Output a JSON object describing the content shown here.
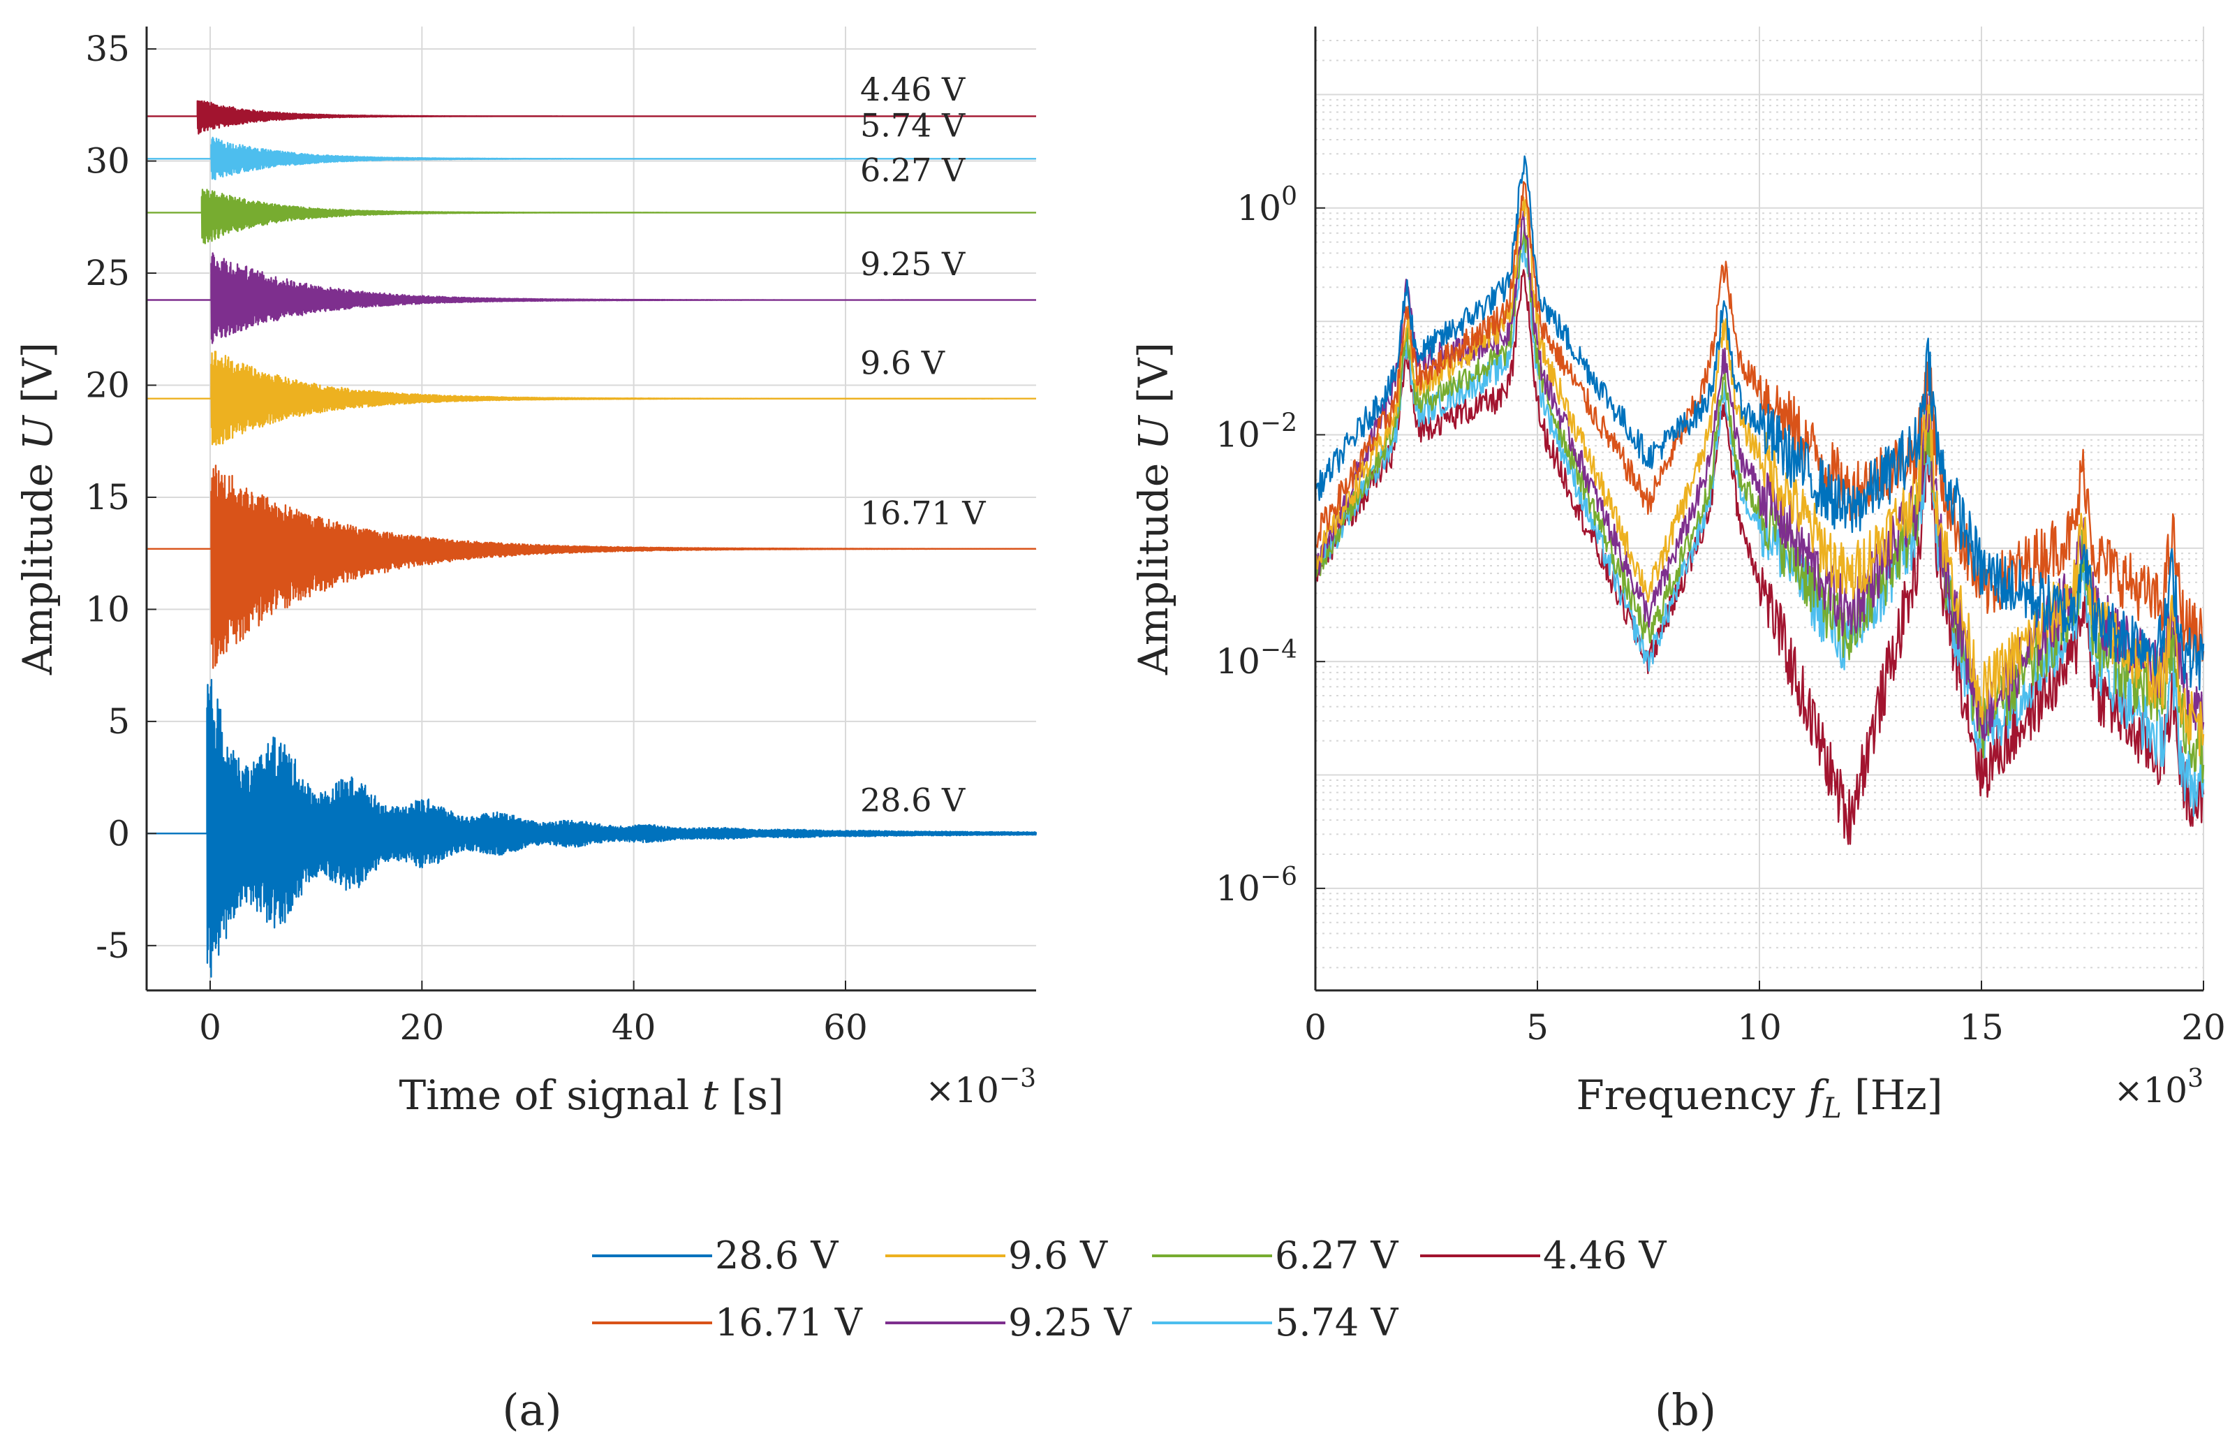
{
  "colors": {
    "s28_6": "#0072BD",
    "s16_71": "#D95319",
    "s9_6": "#EDB120",
    "s9_25": "#7E2F8E",
    "s6_27": "#77AC30",
    "s5_74": "#4DBEEE",
    "s4_46": "#A2142F",
    "axis": "#262626",
    "grid": "#d9d9d9"
  },
  "legend": {
    "s28_6": "28.6 V",
    "s16_71": "16.71 V",
    "s9_6": "9.6 V",
    "s9_25": "9.25 V",
    "s6_27": "6.27 V",
    "s5_74": "5.74 V",
    "s4_46": "4.46 V"
  },
  "panels": {
    "a": "(a)",
    "b": "(b)"
  },
  "chart_data": [
    {
      "type": "line",
      "title": "",
      "xlabel_prefix": "Time of signal ",
      "xlabel_var": "t",
      "xlabel_unit": " [s]",
      "ylabel_prefix": "Amplitude ",
      "ylabel_var": "U",
      "ylabel_unit": " [V]",
      "x_multiplier_base": "×10",
      "x_multiplier_exp": "−3",
      "xlim": [
        -6,
        78
      ],
      "ylim": [
        -7,
        36
      ],
      "grid": true,
      "xticks": [
        0,
        20,
        40,
        60
      ],
      "xtick_labels": [
        "0",
        "20",
        "40",
        "60"
      ],
      "yticks": [
        -5,
        0,
        5,
        10,
        15,
        20,
        25,
        30,
        35
      ],
      "ytick_labels": [
        "-5",
        "0",
        "5",
        "10",
        "15",
        "20",
        "25",
        "30",
        "35"
      ],
      "series": [
        {
          "key": "s28_6",
          "name": "28.6 V",
          "offset": 0,
          "start": -0.3,
          "amp_pos": 6.5,
          "amp_neg": 6.5,
          "decay_ms": 12,
          "annotation": "28.6 V",
          "annotation_y": 1
        },
        {
          "key": "s16_71",
          "name": "16.71 V",
          "offset": 12.7,
          "start": 0.1,
          "amp_pos": 4.0,
          "amp_neg": 5.5,
          "decay_ms": 10,
          "annotation": "16.71 V",
          "annotation_y": 13.8
        },
        {
          "key": "s9_6",
          "name": "9.6 V",
          "offset": 19.4,
          "start": 0.1,
          "amp_pos": 2.3,
          "amp_neg": 2.3,
          "decay_ms": 8,
          "annotation": "9.6 V",
          "annotation_y": 20.5
        },
        {
          "key": "s9_25",
          "name": "9.25 V",
          "offset": 23.8,
          "start": 0.1,
          "amp_pos": 2.3,
          "amp_neg": 2.0,
          "decay_ms": 8,
          "annotation": "9.25 V",
          "annotation_y": 24.9
        },
        {
          "key": "s6_27",
          "name": "6.27 V",
          "offset": 27.7,
          "start": -0.8,
          "amp_pos": 1.2,
          "amp_neg": 1.5,
          "decay_ms": 6,
          "annotation": "6.27 V",
          "annotation_y": 29.1
        },
        {
          "key": "s5_74",
          "name": "5.74 V",
          "offset": 30.1,
          "start": 0.1,
          "amp_pos": 1.0,
          "amp_neg": 1.0,
          "decay_ms": 6,
          "annotation": "5.74 V",
          "annotation_y": 31.1
        },
        {
          "key": "s4_46",
          "name": "4.46 V",
          "offset": 32.0,
          "start": -1.2,
          "amp_pos": 0.8,
          "amp_neg": 0.8,
          "decay_ms": 5,
          "annotation": "4.46 V",
          "annotation_y": 32.7
        }
      ]
    },
    {
      "type": "line",
      "title": "",
      "yscale": "log",
      "xlabel_prefix": "Frequency ",
      "xlabel_var": "f",
      "xlabel_sub": "L",
      "xlabel_unit": " [Hz]",
      "ylabel_prefix": "Amplitude ",
      "ylabel_var": "U",
      "ylabel_unit": " [V]",
      "x_multiplier_base": "×10",
      "x_multiplier_exp": "3",
      "xlim": [
        0,
        20
      ],
      "ylim_log10": [
        -6.9,
        1.6
      ],
      "grid": true,
      "xticks": [
        0,
        5,
        10,
        15,
        20
      ],
      "xtick_labels": [
        "0",
        "5",
        "10",
        "15",
        "20"
      ],
      "ytick_exponents": [
        0,
        -2,
        -4,
        -6
      ],
      "ytick_base": "10",
      "ytick_exp_labels": [
        "0",
        "−2",
        "−4",
        "−6"
      ],
      "peaks_khz": [
        2.05,
        4.7,
        9.2,
        13.8,
        17.3,
        19.3
      ],
      "series": [
        {
          "key": "s28_6",
          "name": "28.6 V",
          "log_amp_at": [
            [
              0,
              -2.5
            ],
            [
              2,
              -1.4
            ],
            [
              4.7,
              -0.6
            ],
            [
              7.5,
              -2.2
            ],
            [
              9.2,
              -1.6
            ],
            [
              12,
              -2.7
            ],
            [
              13.8,
              -2.0
            ],
            [
              15,
              -3.2
            ],
            [
              17,
              -3.6
            ],
            [
              20,
              -4.0
            ]
          ]
        },
        {
          "key": "s16_71",
          "name": "16.71 V",
          "log_amp_at": [
            [
              0,
              -2.9
            ],
            [
              2,
              -1.6
            ],
            [
              4.7,
              -0.8
            ],
            [
              7.5,
              -2.6
            ],
            [
              9.2,
              -1.2
            ],
            [
              12,
              -2.5
            ],
            [
              13.8,
              -2.1
            ],
            [
              15,
              -3.4
            ],
            [
              17,
              -2.9
            ],
            [
              20,
              -3.8
            ]
          ]
        },
        {
          "key": "s9_6",
          "name": "9.6 V",
          "log_amp_at": [
            [
              0,
              -3.1
            ],
            [
              2,
              -1.7
            ],
            [
              4.7,
              -0.9
            ],
            [
              7.5,
              -3.4
            ],
            [
              9.2,
              -1.7
            ],
            [
              12,
              -3.3
            ],
            [
              13.8,
              -2.4
            ],
            [
              15,
              -4.3
            ],
            [
              17,
              -3.4
            ],
            [
              20,
              -4.6
            ]
          ]
        },
        {
          "key": "s9_25",
          "name": "9.25 V",
          "log_amp_at": [
            [
              0,
              -3.2
            ],
            [
              2,
              -1.4
            ],
            [
              4.7,
              -1.1
            ],
            [
              7.5,
              -3.6
            ],
            [
              9.2,
              -2.0
            ],
            [
              12,
              -3.6
            ],
            [
              13.8,
              -2.5
            ],
            [
              15,
              -4.5
            ],
            [
              17,
              -3.4
            ],
            [
              20,
              -4.4
            ]
          ]
        },
        {
          "key": "s6_27",
          "name": "6.27 V",
          "log_amp_at": [
            [
              0,
              -3.2
            ],
            [
              2,
              -1.8
            ],
            [
              4.7,
              -1.2
            ],
            [
              7.5,
              -3.8
            ],
            [
              9.2,
              -2.2
            ],
            [
              12,
              -3.8
            ],
            [
              13.8,
              -2.6
            ],
            [
              15,
              -4.6
            ],
            [
              17,
              -3.6
            ],
            [
              20,
              -4.8
            ]
          ]
        },
        {
          "key": "s5_74",
          "name": "5.74 V",
          "log_amp_at": [
            [
              0,
              -3.2
            ],
            [
              2,
              -1.9
            ],
            [
              4.7,
              -1.3
            ],
            [
              7.5,
              -4.0
            ],
            [
              9.2,
              -2.3
            ],
            [
              12,
              -3.9
            ],
            [
              13.8,
              -2.7
            ],
            [
              15,
              -4.7
            ],
            [
              17,
              -3.7
            ],
            [
              20,
              -5.2
            ]
          ]
        },
        {
          "key": "s4_46",
          "name": "4.46 V",
          "log_amp_at": [
            [
              0,
              -3.2
            ],
            [
              2,
              -2.0
            ],
            [
              4.7,
              -1.6
            ],
            [
              7.5,
              -4.0
            ],
            [
              9.2,
              -2.4
            ],
            [
              12,
              -5.4
            ],
            [
              13.8,
              -2.8
            ],
            [
              15,
              -5.0
            ],
            [
              17,
              -4.0
            ],
            [
              20,
              -5.3
            ]
          ]
        }
      ]
    }
  ]
}
